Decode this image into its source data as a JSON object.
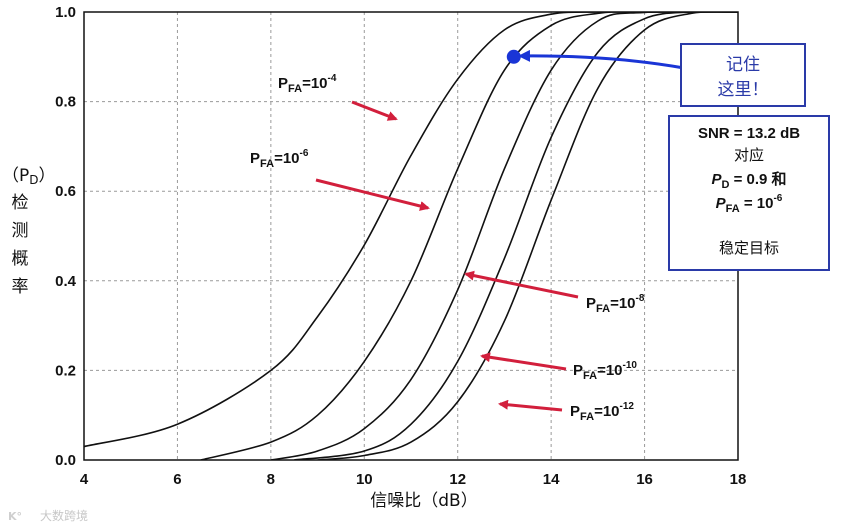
{
  "chart_data": {
    "type": "line",
    "xlabel": "信噪比（dB）",
    "ylabel_abbr": "（P",
    "ylabel_sub": "D",
    "ylabel_close": "）",
    "ylabel_chars": [
      "检",
      "测",
      "概",
      "率"
    ],
    "xlim": [
      4,
      18
    ],
    "ylim": [
      0.0,
      1.0
    ],
    "xticks": [
      "4",
      "6",
      "8",
      "10",
      "12",
      "14",
      "16",
      "18"
    ],
    "yticks": [
      "0.0",
      "0.2",
      "0.4",
      "0.6",
      "0.8",
      "1.0"
    ],
    "grid": true,
    "series": [
      {
        "pfa_exp": "-4",
        "x": [
          4,
          6,
          8,
          9,
          10,
          11,
          12,
          13,
          14,
          15,
          16,
          18
        ],
        "y": [
          0.03,
          0.08,
          0.2,
          0.32,
          0.48,
          0.68,
          0.85,
          0.96,
          0.995,
          1.0,
          1.0,
          1.0
        ]
      },
      {
        "pfa_exp": "-6",
        "x": [
          6.5,
          8,
          9,
          10,
          11,
          12,
          13,
          14,
          15,
          16,
          18
        ],
        "y": [
          0.0,
          0.04,
          0.1,
          0.22,
          0.4,
          0.65,
          0.87,
          0.97,
          0.997,
          1.0,
          1.0
        ]
      },
      {
        "pfa_exp": "-8",
        "x": [
          8,
          9,
          10,
          11,
          12,
          13,
          14,
          15,
          16,
          18
        ],
        "y": [
          0.0,
          0.02,
          0.07,
          0.18,
          0.38,
          0.65,
          0.87,
          0.98,
          0.999,
          1.0
        ]
      },
      {
        "pfa_exp": "-10",
        "x": [
          8.5,
          10,
          11,
          12,
          13,
          14,
          15,
          16,
          17,
          18
        ],
        "y": [
          0.0,
          0.02,
          0.08,
          0.22,
          0.45,
          0.72,
          0.91,
          0.985,
          1.0,
          1.0
        ]
      },
      {
        "pfa_exp": "-12",
        "x": [
          9,
          10,
          11,
          12,
          13,
          14,
          15,
          16,
          17,
          18
        ],
        "y": [
          0.0,
          0.01,
          0.04,
          0.13,
          0.31,
          0.58,
          0.83,
          0.96,
          0.997,
          1.0
        ]
      }
    ],
    "curve_label_text": "P",
    "curve_label_sub": "FA",
    "curve_label_eq": "=10",
    "marker": {
      "x": 13.2,
      "y": 0.9,
      "color": "#1a35d6"
    }
  },
  "note_remember": {
    "line1": "记住",
    "line2": "这里！"
  },
  "note_info": {
    "snr": "SNR = 13.2 dB",
    "corr": "对应",
    "pd_p": "P",
    "pd_sub": "D",
    "pd_rest": " = 0.9  和",
    "pfa_p": "P",
    "pfa_sub": "FA",
    "pfa_rest": " = 10",
    "pfa_sup": "-6",
    "goal": "稳定目标"
  },
  "watermark": "大数跨境",
  "colors": {
    "arrow": "#d21f3c",
    "marker": "#1a35d6",
    "note_border": "#2a3aa8",
    "curve": "#111111"
  }
}
